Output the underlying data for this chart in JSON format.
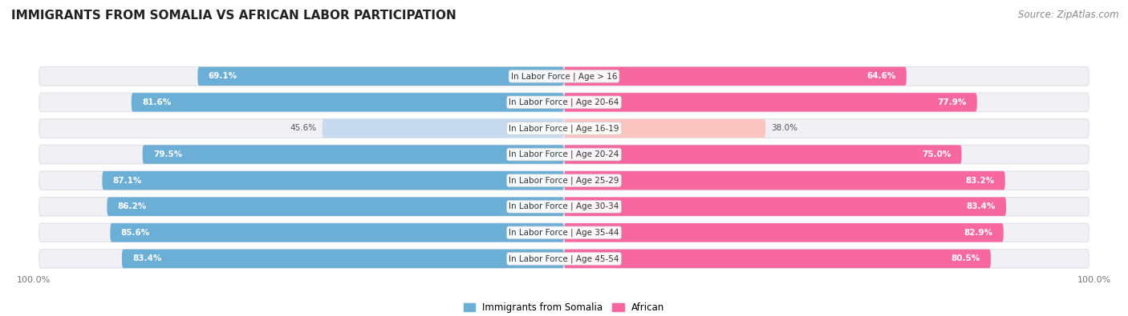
{
  "title": "IMMIGRANTS FROM SOMALIA VS AFRICAN LABOR PARTICIPATION",
  "source": "Source: ZipAtlas.com",
  "categories": [
    "In Labor Force | Age > 16",
    "In Labor Force | Age 20-64",
    "In Labor Force | Age 16-19",
    "In Labor Force | Age 20-24",
    "In Labor Force | Age 25-29",
    "In Labor Force | Age 30-34",
    "In Labor Force | Age 35-44",
    "In Labor Force | Age 45-54"
  ],
  "somalia_values": [
    69.1,
    81.6,
    45.6,
    79.5,
    87.1,
    86.2,
    85.6,
    83.4
  ],
  "african_values": [
    64.6,
    77.9,
    38.0,
    75.0,
    83.2,
    83.4,
    82.9,
    80.5
  ],
  "somalia_color": "#6baed6",
  "somalia_color_light": "#c6dbef",
  "african_color": "#f768a1",
  "african_color_light": "#fcc5c0",
  "row_bg_color": "#f0f0f5",
  "row_border_color": "#e0e0e8",
  "max_value": 100.0,
  "figsize": [
    14.06,
    3.95
  ],
  "dpi": 100,
  "title_fontsize": 11,
  "source_fontsize": 8.5,
  "label_fontsize": 7.5,
  "value_fontsize": 7.5,
  "axis_label_fontsize": 8,
  "legend_fontsize": 8.5
}
